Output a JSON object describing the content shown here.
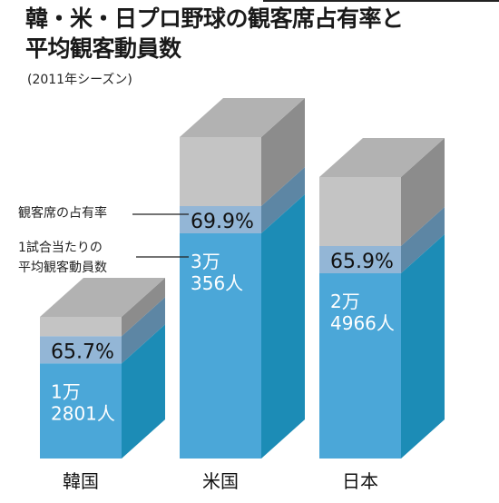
{
  "header": {
    "title_line1": "韓・米・日プロ野球の観客席占有率と",
    "title_line2": "平均観客動員数",
    "subtitle": "(2011年シーズン)"
  },
  "legend": {
    "occupancy_label": "観客席の占有率",
    "attendance_label_line1": "1試合当たりの",
    "attendance_label_line2": "平均観客動員数"
  },
  "colors": {
    "front_blue": "#4ba7d8",
    "side_blue": "#1c8cb6",
    "front_gray": "#c4c4c4",
    "side_gray": "#8c8c8c",
    "top_gray": "#b2b2b2",
    "overlap_front": "#93b6d6",
    "overlap_side": "#5d86a4"
  },
  "chart_data": {
    "type": "bar",
    "style": "3d-stacked-box",
    "categories": [
      "韓国",
      "米国",
      "日本"
    ],
    "series": [
      {
        "name": "1試合当たりの平均観客動員数",
        "values": [
          12801,
          30356,
          24966
        ],
        "labels_line1": [
          "1万",
          "3万",
          "2万"
        ],
        "labels_line2": [
          "2801人",
          "356人",
          "4966人"
        ]
      },
      {
        "name": "観客席の占有率",
        "values": [
          65.7,
          69.9,
          65.9
        ],
        "labels": [
          "65.7%",
          "69.9%",
          "65.9%"
        ]
      }
    ]
  }
}
